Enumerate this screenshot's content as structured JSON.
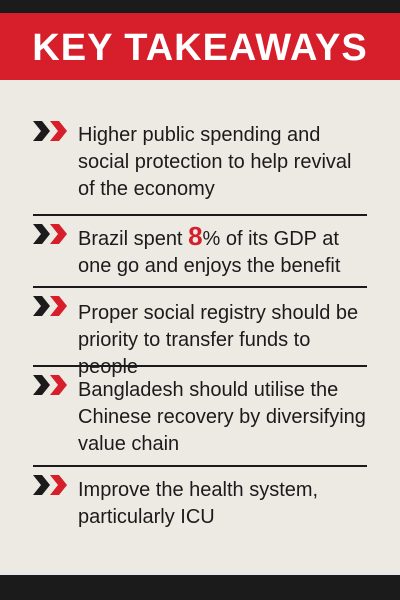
{
  "header": {
    "title": "KEY TAKEAWAYS",
    "bg_color": "#d71e2b"
  },
  "colors": {
    "accent": "#d71e2b",
    "text": "#1b1b1b",
    "background": "#ede9e3"
  },
  "bullet_icon": "double-chevron-right-icon",
  "items": [
    {
      "text": "Higher public spending and social protection to help revival of the economy"
    },
    {
      "text_before": "Brazil spent ",
      "highlight": "8",
      "text_after": "% of its GDP at one go and enjoys the benefit"
    },
    {
      "text": "Proper social registry should be priority to transfer funds to people"
    },
    {
      "text": "Bangladesh should utilise the Chinese recovery by diversifying value chain"
    },
    {
      "text": "Improve the health system, particularly ICU"
    }
  ]
}
